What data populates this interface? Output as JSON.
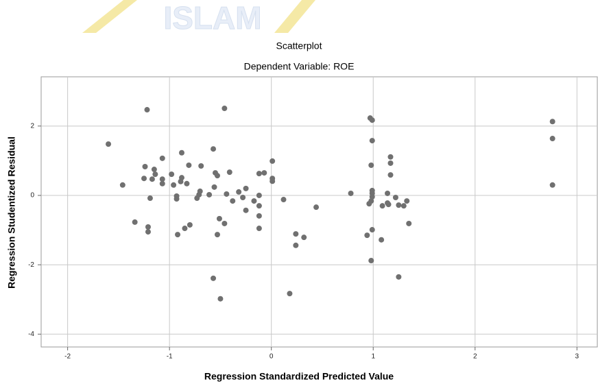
{
  "watermark": "ISLAM",
  "chart_data": {
    "type": "scatter",
    "title": "Scatterplot",
    "subtitle": "Dependent Variable: ROE",
    "xlabel": "Regression Standardized Predicted Value",
    "ylabel": "Regression Studentized Residual",
    "color": "#707070",
    "grid": true,
    "xlim": [
      -2.26,
      3.2
    ],
    "ylim": [
      -4.37,
      3.42
    ],
    "xticks": [
      -2,
      -1,
      0,
      1,
      2,
      3
    ],
    "yticks": [
      -4,
      -2,
      0,
      2
    ],
    "x": [
      -1.6,
      -1.46,
      -1.22,
      -1.24,
      -1.25,
      -1.15,
      -1.14,
      -1.17,
      -1.19,
      -1.07,
      -1.07,
      -1.07,
      -1.34,
      -1.21,
      -1.21,
      -0.98,
      -0.96,
      -0.93,
      -0.93,
      -0.92,
      -0.88,
      -0.88,
      -0.89,
      -0.83,
      -0.81,
      -0.85,
      -0.8,
      -0.69,
      -0.7,
      -0.71,
      -0.73,
      -0.61,
      -0.57,
      -0.56,
      -0.55,
      -0.53,
      -0.57,
      -0.53,
      -0.51,
      -0.5,
      -0.46,
      -0.46,
      -0.44,
      -0.41,
      -0.38,
      -0.32,
      -0.28,
      -0.25,
      -0.25,
      -0.17,
      -0.12,
      -0.12,
      -0.12,
      -0.12,
      -0.12,
      -0.07,
      0.01,
      0.01,
      0.01,
      0.12,
      0.18,
      0.24,
      0.24,
      0.32,
      0.44,
      0.78,
      0.97,
      0.99,
      0.99,
      0.98,
      0.99,
      0.99,
      0.99,
      0.98,
      0.96,
      0.99,
      0.94,
      0.98,
      1.08,
      1.09,
      1.14,
      1.14,
      1.15,
      1.17,
      1.17,
      1.17,
      1.22,
      1.25,
      1.25,
      1.3,
      1.33,
      1.35,
      2.76,
      2.76,
      2.76
    ],
    "y": [
      1.48,
      0.3,
      2.47,
      0.83,
      0.49,
      0.75,
      0.61,
      0.47,
      -0.08,
      1.07,
      0.47,
      0.34,
      -0.77,
      -0.91,
      -1.05,
      0.61,
      0.3,
      -0.02,
      -0.1,
      -1.13,
      1.23,
      0.51,
      0.4,
      0.34,
      0.87,
      -0.95,
      -0.85,
      0.85,
      0.12,
      0.02,
      -0.08,
      0.02,
      1.34,
      0.24,
      0.65,
      0.57,
      -2.39,
      -1.13,
      -0.67,
      -2.98,
      2.51,
      -0.81,
      0.04,
      0.67,
      -0.16,
      0.1,
      -0.06,
      0.2,
      -0.43,
      -0.16,
      0.63,
      0.0,
      -0.3,
      -0.59,
      -0.95,
      0.65,
      0.99,
      0.49,
      0.41,
      -0.12,
      -2.83,
      -1.11,
      -1.44,
      -1.21,
      -0.34,
      0.06,
      2.23,
      2.17,
      1.58,
      0.87,
      0.14,
      0.06,
      -0.04,
      -0.16,
      -0.24,
      -0.99,
      -1.15,
      -1.88,
      -1.28,
      -0.3,
      -0.22,
      0.06,
      -0.26,
      1.11,
      0.93,
      0.59,
      -0.06,
      -0.28,
      -2.35,
      -0.3,
      -0.16,
      -0.81,
      2.13,
      1.64,
      0.3
    ]
  }
}
